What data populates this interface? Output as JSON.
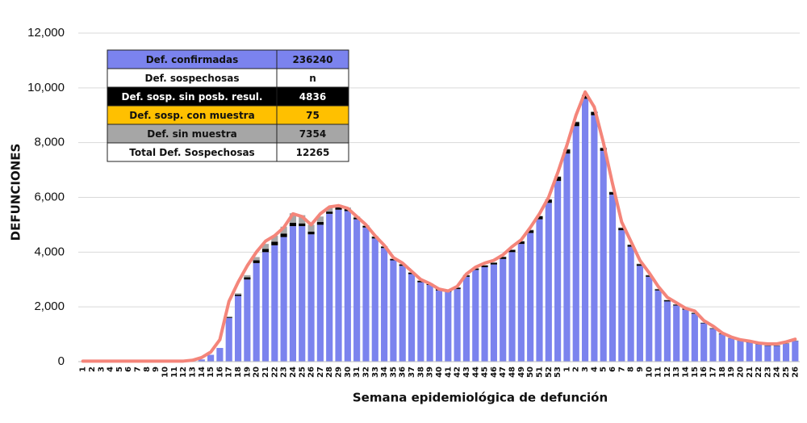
{
  "chart_data": {
    "type": "bar",
    "xlabel": "Semana epidemiológica de defunción",
    "ylabel": "DEFUNCIONES",
    "categories": [
      "1",
      "2",
      "3",
      "4",
      "5",
      "6",
      "7",
      "8",
      "9",
      "10",
      "11",
      "12",
      "13",
      "14",
      "15",
      "16",
      "17",
      "18",
      "19",
      "20",
      "21",
      "22",
      "23",
      "24",
      "25",
      "26",
      "27",
      "28",
      "29",
      "30",
      "31",
      "32",
      "33",
      "34",
      "35",
      "36",
      "37",
      "38",
      "39",
      "40",
      "41",
      "42",
      "43",
      "44",
      "45",
      "46",
      "47",
      "48",
      "49",
      "50",
      "51",
      "52",
      "53",
      "1",
      "2",
      "3",
      "4",
      "5",
      "6",
      "7",
      "8",
      "9",
      "10",
      "11",
      "12",
      "13",
      "14",
      "15",
      "16",
      "17",
      "18",
      "19",
      "20",
      "21",
      "22",
      "23",
      "24",
      "25",
      "26"
    ],
    "ylim": [
      0,
      12000
    ],
    "yticks": [
      0,
      {
        "value": 2000,
        "label": "2,000"
      },
      {
        "value": 4000,
        "label": "4,000"
      },
      {
        "value": 6000,
        "label": "6,000"
      },
      {
        "value": 8000,
        "label": "8,000"
      },
      {
        "value": 10000,
        "label": "10,000"
      },
      {
        "value": 12000,
        "label": "12,000"
      }
    ],
    "grid": true,
    "series": [
      {
        "name": "Def. confirmadas",
        "total": 236240,
        "color": "#7b83ee",
        "values": [
          0,
          0,
          0,
          0,
          0,
          0,
          0,
          0,
          0,
          0,
          0,
          0,
          20,
          80,
          250,
          500,
          1600,
          2400,
          3000,
          3600,
          4000,
          4250,
          4550,
          4950,
          4950,
          4650,
          5000,
          5400,
          5550,
          5500,
          5200,
          4900,
          4500,
          4150,
          3700,
          3500,
          3200,
          2900,
          2800,
          2600,
          2550,
          2650,
          3100,
          3350,
          3450,
          3550,
          3750,
          4000,
          4300,
          4700,
          5200,
          5800,
          6600,
          7600,
          8600,
          9600,
          9000,
          7700,
          6100,
          4800,
          4200,
          3500,
          3100,
          2600,
          2200,
          2050,
          1900,
          1750,
          1400,
          1200,
          1000,
          850,
          750,
          700,
          620,
          580,
          580,
          650,
          750
        ]
      },
      {
        "name": "Def. sosp. sin posb. resul.",
        "total": 4836,
        "color": "#000000",
        "values": [
          0,
          0,
          0,
          0,
          0,
          0,
          0,
          0,
          0,
          0,
          0,
          0,
          0,
          0,
          0,
          0,
          30,
          50,
          80,
          100,
          120,
          130,
          130,
          120,
          100,
          100,
          100,
          80,
          80,
          70,
          60,
          60,
          60,
          50,
          50,
          50,
          50,
          50,
          40,
          40,
          40,
          50,
          50,
          50,
          60,
          60,
          70,
          80,
          90,
          100,
          110,
          120,
          150,
          150,
          150,
          130,
          120,
          100,
          90,
          80,
          60,
          60,
          50,
          40,
          40,
          30,
          30,
          30,
          20,
          20,
          20,
          10,
          10,
          10,
          10,
          10,
          10,
          10,
          10
        ]
      },
      {
        "name": "Def. sosp. con  muestra",
        "total": 75,
        "color": "#ffc000",
        "values": [
          0,
          0,
          0,
          0,
          0,
          0,
          0,
          0,
          0,
          0,
          0,
          0,
          0,
          0,
          0,
          0,
          0,
          0,
          0,
          0,
          0,
          0,
          0,
          0,
          0,
          0,
          0,
          0,
          0,
          0,
          0,
          0,
          0,
          0,
          0,
          0,
          0,
          0,
          0,
          0,
          0,
          0,
          0,
          0,
          0,
          0,
          0,
          0,
          0,
          0,
          0,
          0,
          0,
          0,
          0,
          0,
          0,
          0,
          0,
          0,
          0,
          0,
          0,
          0,
          0,
          0,
          0,
          0,
          0,
          0,
          0,
          0,
          0,
          0,
          0,
          0,
          0,
          0,
          0
        ]
      },
      {
        "name": "Def. sin muestra",
        "total": 7354,
        "color": "#a6a6a6",
        "values": [
          0,
          0,
          0,
          0,
          0,
          0,
          0,
          0,
          0,
          0,
          0,
          0,
          0,
          0,
          0,
          0,
          20,
          50,
          80,
          120,
          180,
          220,
          250,
          350,
          300,
          250,
          200,
          150,
          100,
          60,
          40,
          20,
          20,
          20,
          20,
          20,
          20,
          20,
          20,
          20,
          20,
          20,
          20,
          20,
          20,
          20,
          20,
          20,
          20,
          20,
          20,
          20,
          20,
          20,
          20,
          20,
          20,
          20,
          20,
          20,
          20,
          20,
          20,
          20,
          20,
          20,
          20,
          10,
          10,
          10,
          10,
          10,
          10,
          10,
          10,
          10,
          10,
          10,
          10
        ]
      },
      {
        "type": "line",
        "color": "#f4857a",
        "values": [
          20,
          20,
          20,
          20,
          20,
          20,
          20,
          20,
          20,
          20,
          20,
          20,
          50,
          150,
          350,
          800,
          2200,
          2900,
          3500,
          4000,
          4400,
          4600,
          4900,
          5400,
          5300,
          5000,
          5400,
          5650,
          5700,
          5600,
          5300,
          5000,
          4600,
          4250,
          3800,
          3600,
          3300,
          3000,
          2850,
          2650,
          2580,
          2750,
          3200,
          3450,
          3600,
          3700,
          3900,
          4200,
          4450,
          4900,
          5400,
          6000,
          6900,
          7900,
          9000,
          9850,
          9300,
          8000,
          6500,
          5100,
          4400,
          3700,
          3250,
          2750,
          2350,
          2150,
          1950,
          1850,
          1500,
          1300,
          1050,
          900,
          800,
          750,
          680,
          650,
          650,
          720,
          820
        ]
      }
    ],
    "table": {
      "header": [
        "Def. sospechosas",
        "n"
      ],
      "total": {
        "label": "Total Def. Sospechosas",
        "value": 12265
      }
    }
  }
}
